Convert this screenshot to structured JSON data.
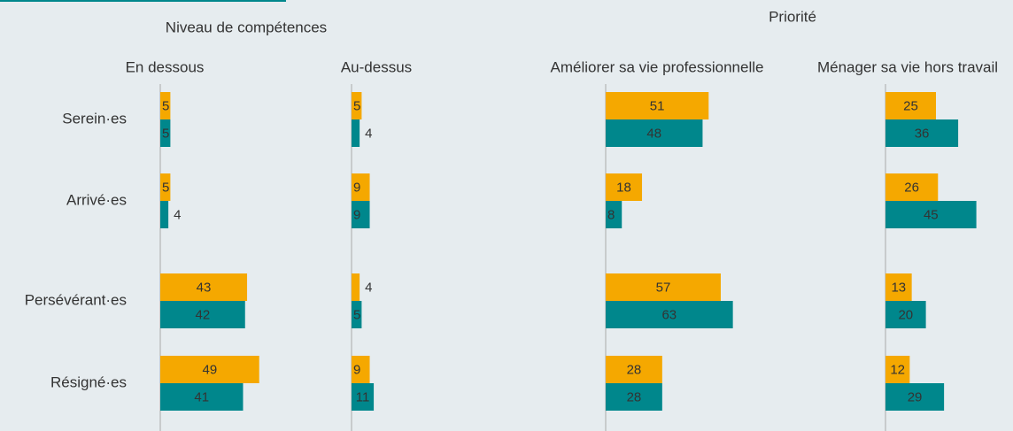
{
  "group_titles": [
    "Niveau de compétences",
    "Priorité"
  ],
  "categories": [
    "Serein·es",
    "Arrivé·es",
    "Persévérant·es",
    "Résigné·es"
  ],
  "chart_data": [
    {
      "type": "bar",
      "orientation": "horizontal",
      "title": "En dessous",
      "series": [
        {
          "color": "#f5a800",
          "values": [
            5,
            5,
            43,
            49
          ]
        },
        {
          "color": "#00878c",
          "values": [
            5,
            4,
            42,
            41
          ]
        }
      ]
    },
    {
      "type": "bar",
      "orientation": "horizontal",
      "title": "Au-dessus",
      "series": [
        {
          "color": "#f5a800",
          "values": [
            5,
            9,
            4,
            9
          ]
        },
        {
          "color": "#00878c",
          "values": [
            4,
            9,
            5,
            11
          ]
        }
      ]
    },
    {
      "type": "bar",
      "orientation": "horizontal",
      "title": "Améliorer sa vie professionnelle",
      "series": [
        {
          "color": "#f5a800",
          "values": [
            51,
            18,
            57,
            28
          ]
        },
        {
          "color": "#00878c",
          "values": [
            48,
            8,
            63,
            28
          ]
        }
      ]
    },
    {
      "type": "bar",
      "orientation": "horizontal",
      "title": "Ménager sa vie hors travail",
      "series": [
        {
          "color": "#f5a800",
          "values": [
            25,
            26,
            13,
            12
          ]
        },
        {
          "color": "#00878c",
          "values": [
            36,
            45,
            20,
            29
          ]
        }
      ]
    }
  ]
}
